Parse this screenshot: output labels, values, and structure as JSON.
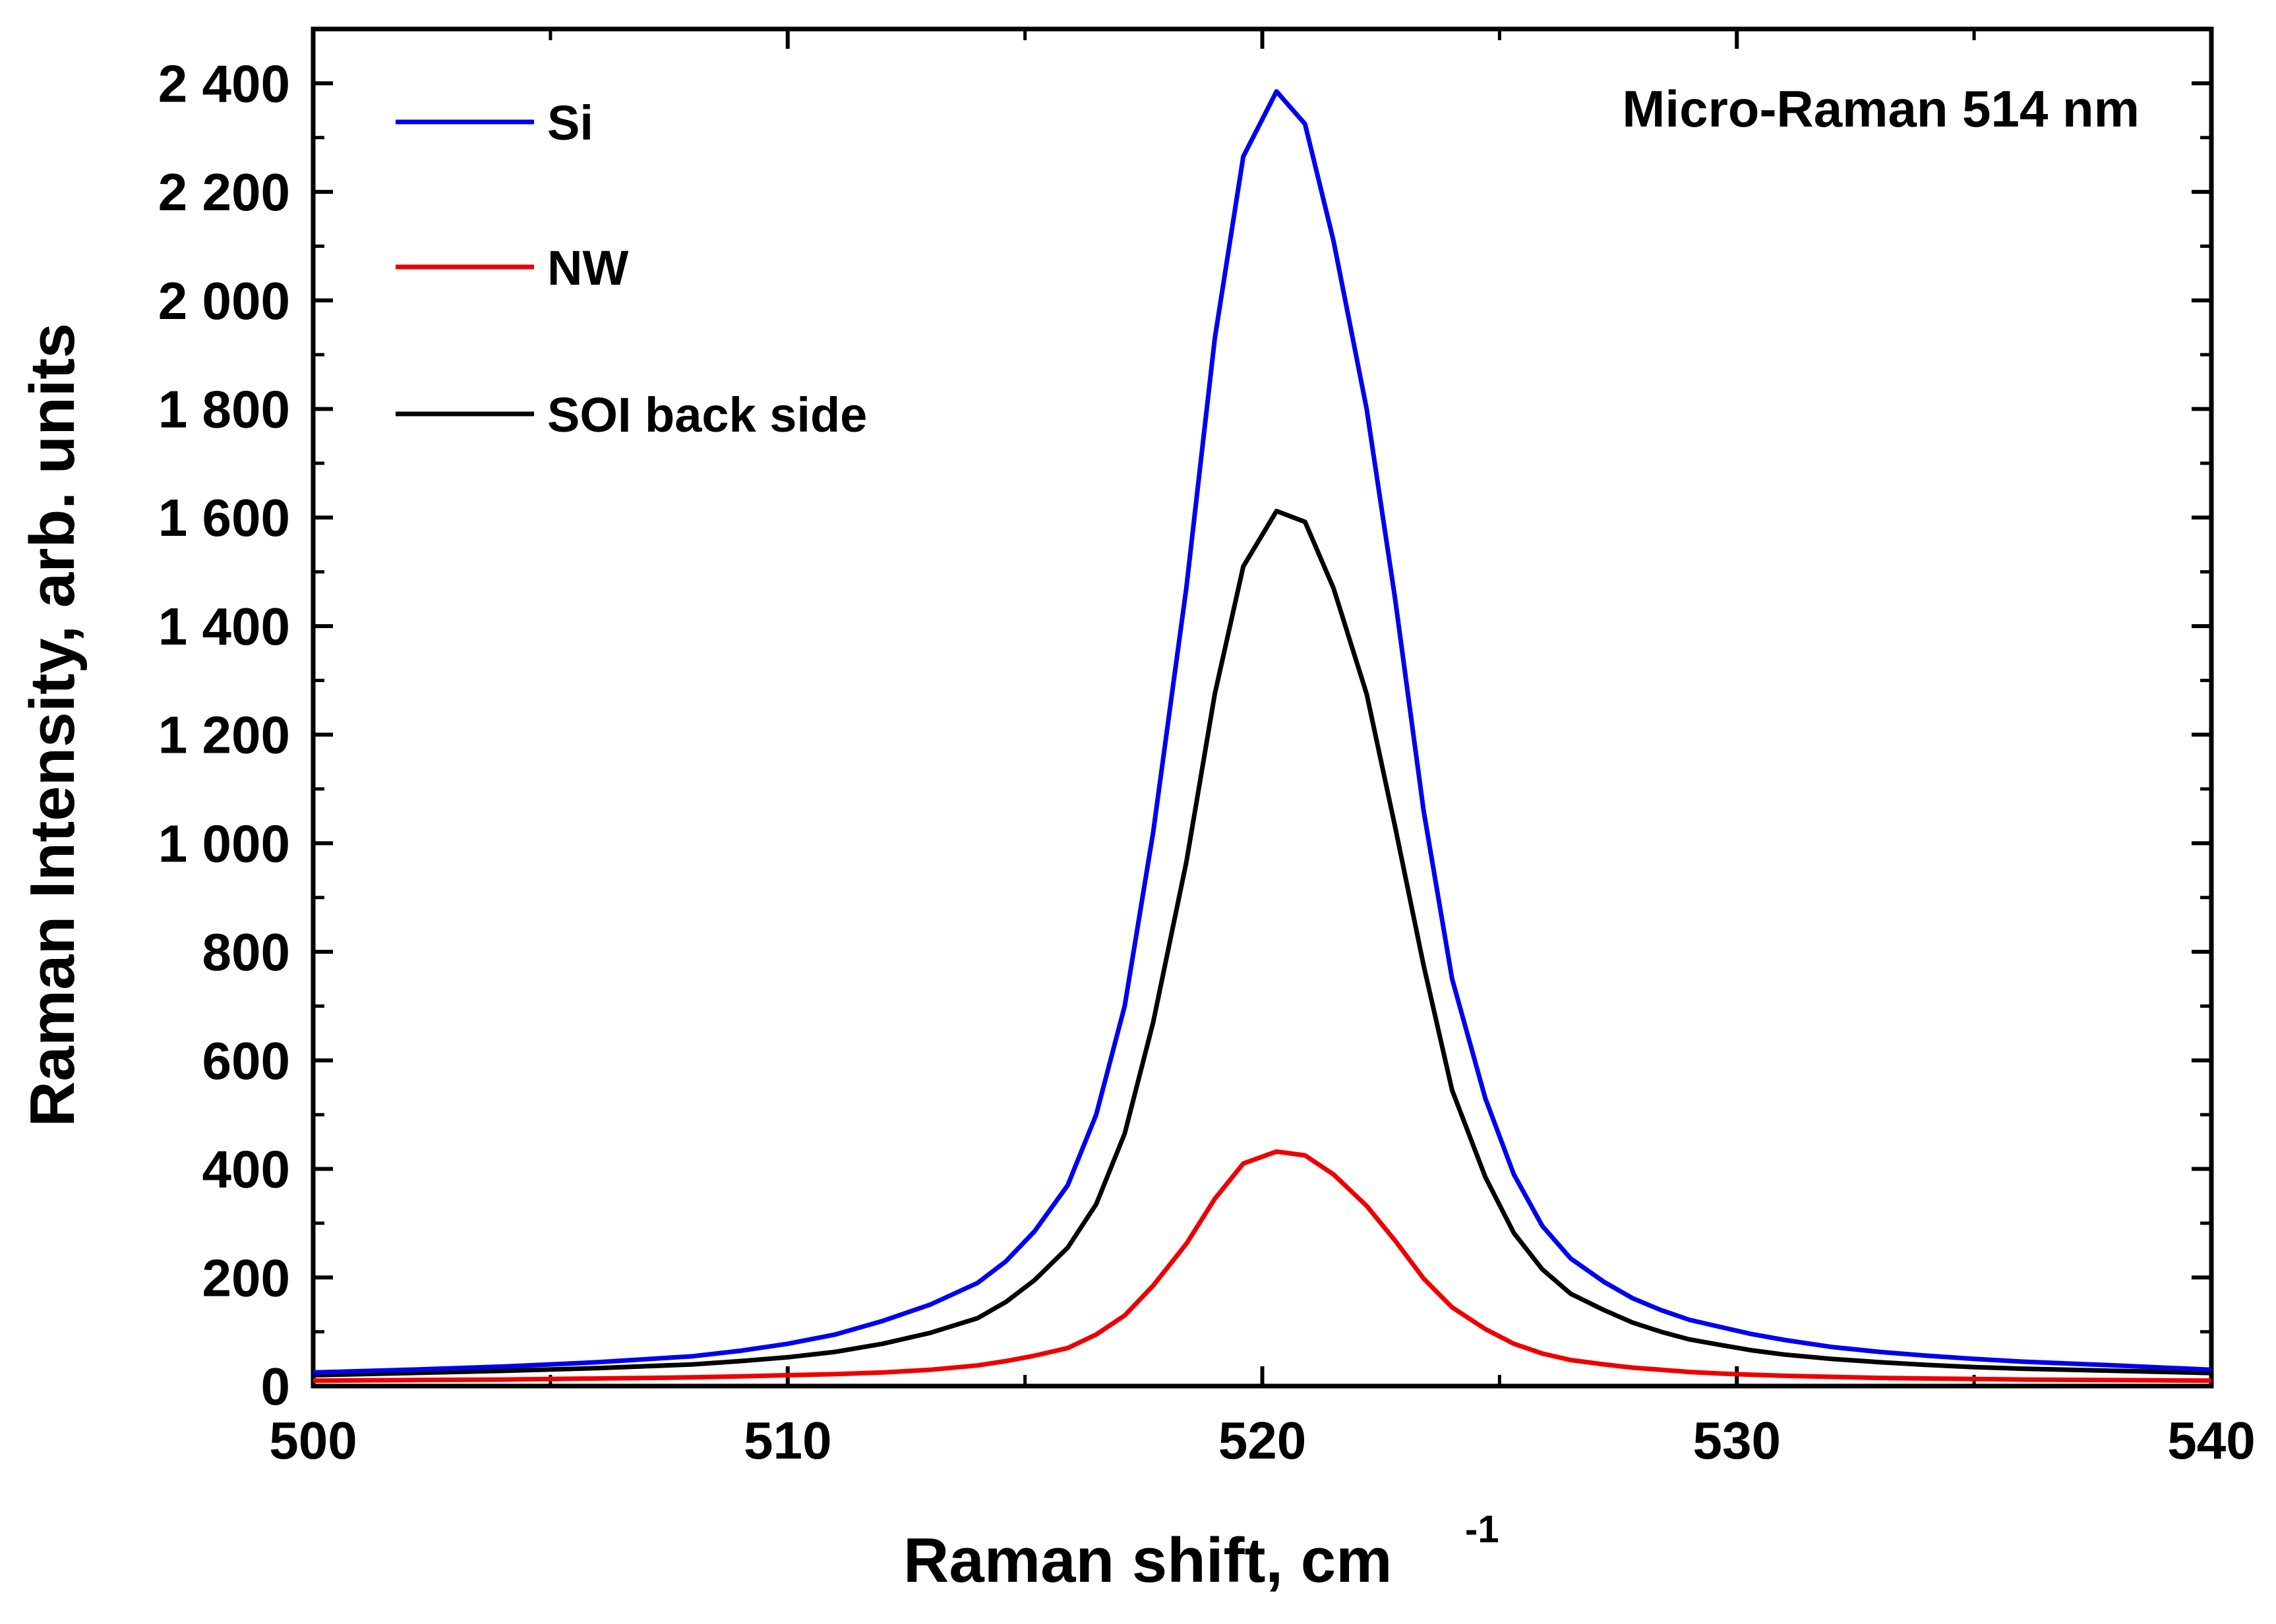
{
  "chart_data": {
    "type": "line",
    "title": "",
    "annotation": "Micro-Raman 514 nm",
    "xlabel": "Raman shift, cm",
    "xlabel_superscript": "-1",
    "ylabel": "Raman Intensity, arb. units",
    "xlim": [
      500,
      540
    ],
    "ylim": [
      0,
      2500
    ],
    "grid": false,
    "legend_position": "top-left",
    "x_ticks": [
      500,
      510,
      520,
      530,
      540
    ],
    "x_tick_labels": [
      "500",
      "510",
      "520",
      "530",
      "540"
    ],
    "y_ticks": [
      0,
      200,
      400,
      600,
      800,
      1000,
      1200,
      1400,
      1600,
      1800,
      2000,
      2200,
      2400
    ],
    "y_tick_labels": [
      "0",
      "200",
      "400",
      "600",
      "800",
      "1 000",
      "1 200",
      "1 400",
      "1 600",
      "1 800",
      "2 000",
      "2 200",
      "2 400"
    ],
    "x": [
      500,
      502,
      504,
      506,
      508,
      509,
      510,
      511,
      512,
      513,
      514,
      514.6,
      515.2,
      515.9,
      516.5,
      517.1,
      517.7,
      518.4,
      519,
      519.6,
      520.3,
      520.9,
      521.5,
      522.2,
      522.8,
      523.4,
      524,
      524.7,
      525.3,
      525.9,
      526.5,
      527.2,
      527.8,
      528.4,
      529,
      529.7,
      530.3,
      531,
      532,
      533,
      534,
      535,
      536,
      538,
      540
    ],
    "series": [
      {
        "name": "Si",
        "color": "#0000ee",
        "values": [
          25,
          30,
          36,
          44,
          55,
          65,
          78,
          95,
          120,
          150,
          190,
          230,
          285,
          370,
          500,
          700,
          1020,
          1470,
          1930,
          2265,
          2385,
          2325,
          2110,
          1800,
          1450,
          1060,
          750,
          530,
          390,
          295,
          235,
          192,
          162,
          140,
          122,
          108,
          96,
          85,
          72,
          63,
          56,
          50,
          45,
          38,
          30
        ]
      },
      {
        "name": "NW",
        "color": "#ee0000",
        "values": [
          10,
          11,
          12,
          14,
          16,
          18,
          20,
          22,
          25,
          30,
          38,
          46,
          56,
          70,
          95,
          130,
          185,
          262,
          345,
          410,
          432,
          425,
          390,
          332,
          268,
          198,
          145,
          105,
          78,
          60,
          48,
          40,
          34,
          30,
          26,
          23,
          21,
          19,
          17,
          15,
          14,
          13,
          12,
          11,
          10
        ]
      },
      {
        "name": "SOI back side",
        "color": "#000000",
        "values": [
          20,
          24,
          28,
          33,
          40,
          46,
          53,
          63,
          78,
          98,
          125,
          155,
          195,
          255,
          335,
          465,
          670,
          965,
          1275,
          1510,
          1612,
          1592,
          1470,
          1275,
          1030,
          775,
          545,
          385,
          282,
          215,
          170,
          140,
          117,
          100,
          86,
          75,
          66,
          58,
          50,
          44,
          39,
          35,
          32,
          28,
          24
        ]
      }
    ]
  }
}
